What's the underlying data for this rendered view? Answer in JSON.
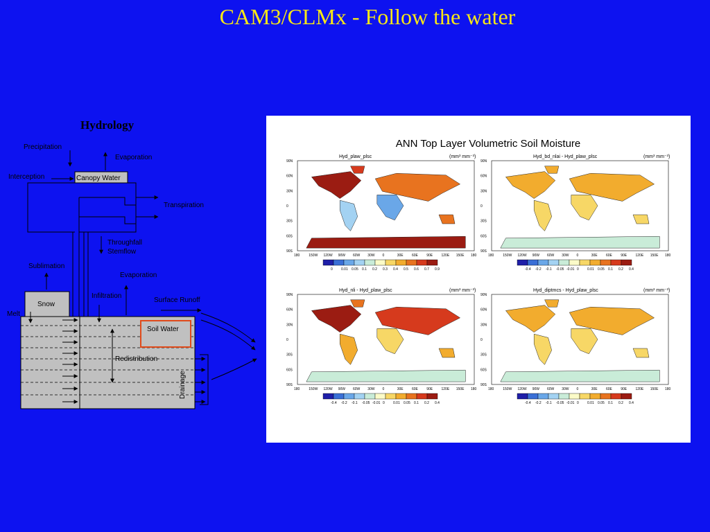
{
  "slide": {
    "title": "CAM3/CLMx - Follow the water"
  },
  "hydrology": {
    "title": "Hydrology",
    "labels": {
      "precipitation": "Precipitation",
      "evaporation_canopy": "Evaporation",
      "interception": "Interception",
      "canopy_water": "Canopy Water",
      "transpiration": "Transpiration",
      "throughfall": "Throughfall",
      "stemflow": "Stemflow",
      "sublimation": "Sublimation",
      "evaporation_ground": "Evaporation",
      "infiltration": "Infiltration",
      "surface_runoff": "Surface Runoff",
      "snow": "Snow",
      "melt": "Melt",
      "soil_water": "Soil Water",
      "redistribution": "Redistribution",
      "drainage": "Drainage"
    }
  },
  "maps": {
    "panel_title": "ANN Top Layer Volumetric Soil Moisture",
    "units": "(mm³ mm⁻³)",
    "lat_ticks": [
      "90N",
      "60N",
      "30N",
      "0",
      "30S",
      "60S",
      "90S"
    ],
    "lon_ticks": [
      "180",
      "150W",
      "120W",
      "90W",
      "60W",
      "30W",
      "0",
      "30E",
      "60E",
      "90E",
      "120E",
      "150E",
      "180"
    ],
    "plots": [
      {
        "title": "Hyd_plaw_plsc",
        "scale": "abs",
        "colorbar_labels": [
          "0",
          "0.01",
          "0.05",
          "0.1",
          "0.2",
          "0.3",
          "0.4",
          "0.5",
          "0.6",
          "0.7",
          "0.9"
        ]
      },
      {
        "title": "Hyd_bd_nlai - Hyd_plaw_plsc",
        "scale": "diff",
        "colorbar_labels": [
          "-0.4",
          "-0.2",
          "-0.1",
          "-0.05",
          "-0.01",
          "0",
          "0.01",
          "0.05",
          "0.1",
          "0.2",
          "0.4"
        ]
      },
      {
        "title": "Hyd_nli - Hyd_plaw_plsc",
        "scale": "diff",
        "colorbar_labels": [
          "-0.4",
          "-0.2",
          "-0.1",
          "-0.05",
          "-0.01",
          "0",
          "0.01",
          "0.05",
          "0.1",
          "0.2",
          "0.4"
        ]
      },
      {
        "title": "Hyd_diptmcs - Hyd_plaw_plsc",
        "scale": "diff",
        "colorbar_labels": [
          "-0.4",
          "-0.2",
          "-0.1",
          "-0.05",
          "-0.01",
          "0",
          "0.01",
          "0.05",
          "0.1",
          "0.2",
          "0.4"
        ]
      }
    ],
    "colorbar_colors": [
      "#1f1fa8",
      "#3a6fd6",
      "#6aa7e8",
      "#a3d2f2",
      "#c9ecd8",
      "#fbfbc8",
      "#f7d766",
      "#f2ac2e",
      "#e8731f",
      "#d63a1d",
      "#9b1c12"
    ]
  }
}
